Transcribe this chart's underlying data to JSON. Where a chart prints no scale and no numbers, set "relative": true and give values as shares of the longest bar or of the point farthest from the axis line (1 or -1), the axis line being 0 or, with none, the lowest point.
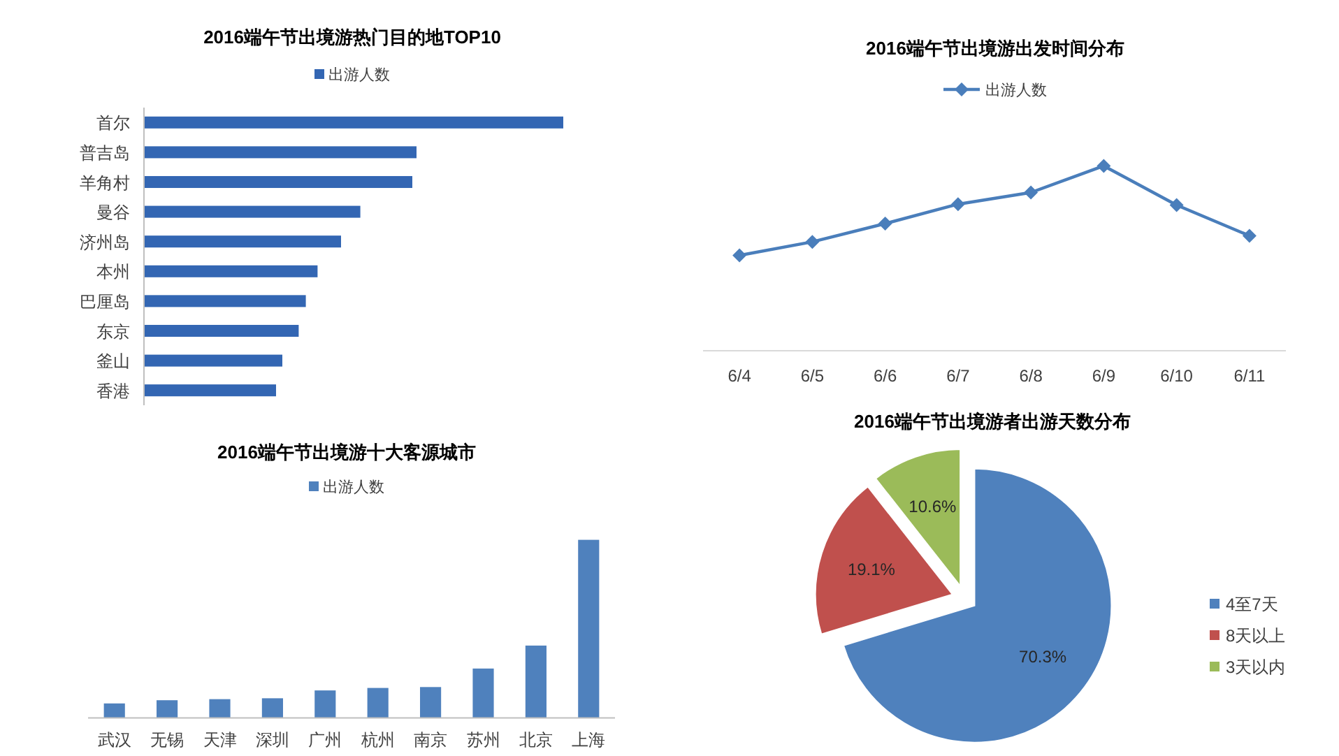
{
  "chart_data": [
    {
      "type": "bar",
      "title": "2016端午节出境游热门目的地TOP10",
      "orientation": "horizontal",
      "relative": true,
      "legend": "top",
      "categories": [
        "首尔",
        "普吉岛",
        "羊角村",
        "曼谷",
        "济州岛",
        "本州",
        "巴厘岛",
        "东京",
        "釜山",
        "香港"
      ],
      "series": [
        {
          "name": "出游人数",
          "color": "#3366b3",
          "values": [
            1,
            0.65,
            0.64,
            0.516,
            0.47,
            0.414,
            0.386,
            0.369,
            0.33,
            0.315
          ]
        }
      ]
    },
    {
      "type": "line",
      "title": "2016端午节出境游出发时间分布",
      "relative": true,
      "legend": "top",
      "marker": "diamond",
      "line_style": "solid",
      "categories": [
        "6/4",
        "6/5",
        "6/6",
        "6/7",
        "6/8",
        "6/9",
        "6/10",
        "6/11"
      ],
      "series": [
        {
          "name": "出游人数",
          "color": "#4a7ebb",
          "values": [
            0.516,
            0.589,
            0.688,
            0.793,
            0.856,
            1,
            0.788,
            0.622
          ]
        }
      ]
    },
    {
      "type": "bar",
      "title": "2016端午节出境游十大客源城市",
      "relative": true,
      "legend": "top",
      "categories": [
        "武汉",
        "无锡",
        "天津",
        "深圳",
        "广州",
        "杭州",
        "南京",
        "苏州",
        "北京",
        "上海"
      ],
      "series": [
        {
          "name": "出游人数",
          "color": "#4f81bd",
          "values": [
            0.081,
            0.099,
            0.105,
            0.11,
            0.154,
            0.168,
            0.173,
            0.277,
            0.406,
            1
          ]
        }
      ]
    },
    {
      "type": "pie",
      "title": "2016端午节出境游者出游天数分布",
      "legend": "right",
      "categories": [
        "4至7天",
        "8天以上",
        "3天以内"
      ],
      "values": [
        70.3,
        19.1,
        10.6
      ],
      "value_labels": [
        "70.3%",
        "19.1%",
        "10.6%"
      ],
      "colors": [
        "#4f81bd",
        "#c0504d",
        "#9bbb59"
      ]
    }
  ]
}
